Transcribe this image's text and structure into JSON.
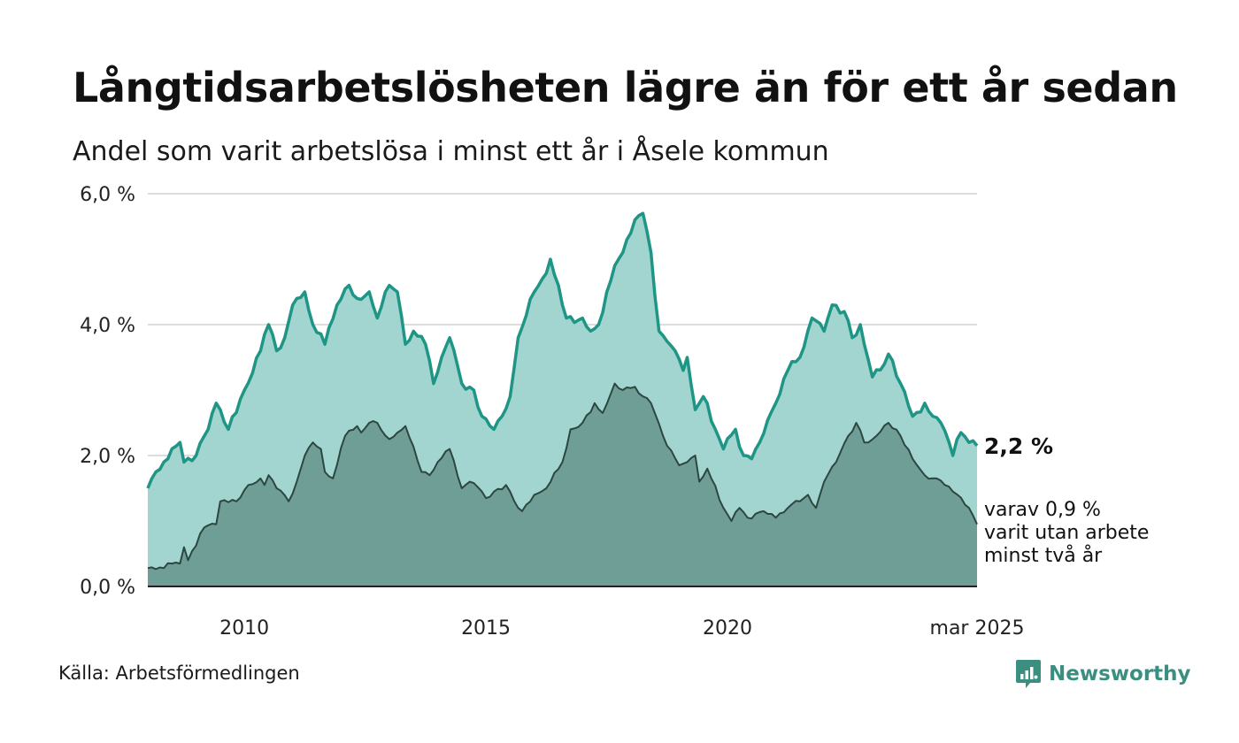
{
  "title": "Långtidsarbetslösheten lägre än för ett år sedan",
  "subtitle": "Andel som varit arbetslösa i minst ett år i Åsele kommun",
  "source": "Källa: Arbetsförmedlingen",
  "brand": "Newsworthy",
  "colors": {
    "series1_line": "#1f9586",
    "series1_fill": "#a3d5d0",
    "series2_line": "#2c4640",
    "series2_fill": "#6f9e96",
    "grid": "#dddddd",
    "baseline": "#222222",
    "brand": "#3a8f80"
  },
  "chart_data": {
    "type": "area",
    "x_start": "2008-01",
    "x_end": "2025-03",
    "frequency": "monthly",
    "ylim": [
      0,
      6
    ],
    "yticks": [
      0,
      2,
      4,
      6
    ],
    "ytick_labels": [
      "0,0 %",
      "2,0 %",
      "4,0 %",
      "6,0 %"
    ],
    "xticks": [
      {
        "x": "2010-01",
        "label": "2010"
      },
      {
        "x": "2015-01",
        "label": "2015"
      },
      {
        "x": "2020-01",
        "label": "2020"
      },
      {
        "x": "2025-03",
        "label": "mar 2025"
      }
    ],
    "grid": true,
    "series": [
      {
        "end_label": "2,2 %",
        "anchors": [
          [
            "2008-01",
            1.5
          ],
          [
            "2008-03",
            1.75
          ],
          [
            "2008-06",
            1.95
          ],
          [
            "2008-09",
            2.2
          ],
          [
            "2008-10",
            1.9
          ],
          [
            "2009-01",
            2.0
          ],
          [
            "2009-04",
            2.4
          ],
          [
            "2009-06",
            2.8
          ],
          [
            "2009-09",
            2.4
          ],
          [
            "2010-01",
            3.0
          ],
          [
            "2010-05",
            3.6
          ],
          [
            "2010-07",
            4.0
          ],
          [
            "2010-09",
            3.6
          ],
          [
            "2010-11",
            3.8
          ],
          [
            "2011-01",
            4.3
          ],
          [
            "2011-04",
            4.5
          ],
          [
            "2011-06",
            4.0
          ],
          [
            "2011-09",
            3.7
          ],
          [
            "2011-12",
            4.3
          ],
          [
            "2012-03",
            4.6
          ],
          [
            "2012-05",
            4.4
          ],
          [
            "2012-08",
            4.5
          ],
          [
            "2012-10",
            4.1
          ],
          [
            "2013-01",
            4.6
          ],
          [
            "2013-03",
            4.5
          ],
          [
            "2013-05",
            3.7
          ],
          [
            "2013-07",
            3.9
          ],
          [
            "2013-10",
            3.7
          ],
          [
            "2013-12",
            3.1
          ],
          [
            "2014-02",
            3.5
          ],
          [
            "2014-04",
            3.8
          ],
          [
            "2014-07",
            3.1
          ],
          [
            "2014-10",
            3.0
          ],
          [
            "2014-12",
            2.6
          ],
          [
            "2015-03",
            2.4
          ],
          [
            "2015-05",
            2.6
          ],
          [
            "2015-07",
            2.9
          ],
          [
            "2015-09",
            3.8
          ],
          [
            "2016-01",
            4.5
          ],
          [
            "2016-03",
            4.7
          ],
          [
            "2016-05",
            5.0
          ],
          [
            "2016-07",
            4.6
          ],
          [
            "2016-09",
            4.1
          ],
          [
            "2017-01",
            4.1
          ],
          [
            "2017-03",
            3.9
          ],
          [
            "2017-05",
            4.0
          ],
          [
            "2017-09",
            4.9
          ],
          [
            "2017-11",
            5.1
          ],
          [
            "2018-01",
            5.4
          ],
          [
            "2018-02",
            5.6
          ],
          [
            "2018-04",
            5.7
          ],
          [
            "2018-06",
            5.1
          ],
          [
            "2018-08",
            3.9
          ],
          [
            "2018-12",
            3.6
          ],
          [
            "2019-02",
            3.3
          ],
          [
            "2019-03",
            3.5
          ],
          [
            "2019-05",
            2.7
          ],
          [
            "2019-07",
            2.9
          ],
          [
            "2019-10",
            2.4
          ],
          [
            "2019-12",
            2.1
          ],
          [
            "2020-03",
            2.4
          ],
          [
            "2020-05",
            2.0
          ],
          [
            "2020-07",
            1.95
          ],
          [
            "2020-09",
            2.2
          ],
          [
            "2021-01",
            2.8
          ],
          [
            "2021-04",
            3.3
          ],
          [
            "2021-07",
            3.5
          ],
          [
            "2021-10",
            4.1
          ],
          [
            "2022-01",
            3.9
          ],
          [
            "2022-03",
            4.3
          ],
          [
            "2022-06",
            4.2
          ],
          [
            "2022-08",
            3.8
          ],
          [
            "2022-10",
            4.0
          ],
          [
            "2023-01",
            3.2
          ],
          [
            "2023-04",
            3.4
          ],
          [
            "2023-05",
            3.55
          ],
          [
            "2023-08",
            3.1
          ],
          [
            "2023-11",
            2.6
          ],
          [
            "2024-02",
            2.8
          ],
          [
            "2024-04",
            2.6
          ],
          [
            "2024-06",
            2.5
          ],
          [
            "2024-09",
            2.0
          ],
          [
            "2024-11",
            2.35
          ],
          [
            "2025-01",
            2.2
          ],
          [
            "2025-03",
            2.15
          ]
        ]
      },
      {
        "end_label": "varav 0,9 %\nvarit utan arbete\nminst två år",
        "anchors": [
          [
            "2008-01",
            0.28
          ],
          [
            "2008-05",
            0.28
          ],
          [
            "2008-07",
            0.35
          ],
          [
            "2008-09",
            0.35
          ],
          [
            "2008-10",
            0.6
          ],
          [
            "2008-11",
            0.4
          ],
          [
            "2009-03",
            0.9
          ],
          [
            "2009-06",
            0.95
          ],
          [
            "2009-07",
            1.3
          ],
          [
            "2009-11",
            1.3
          ],
          [
            "2010-02",
            1.55
          ],
          [
            "2010-05",
            1.65
          ],
          [
            "2010-06",
            1.55
          ],
          [
            "2010-07",
            1.7
          ],
          [
            "2010-09",
            1.5
          ],
          [
            "2010-12",
            1.3
          ],
          [
            "2011-02",
            1.6
          ],
          [
            "2011-04",
            2.0
          ],
          [
            "2011-06",
            2.2
          ],
          [
            "2011-08",
            2.1
          ],
          [
            "2011-09",
            1.75
          ],
          [
            "2011-11",
            1.65
          ],
          [
            "2012-02",
            2.3
          ],
          [
            "2012-05",
            2.45
          ],
          [
            "2012-06",
            2.35
          ],
          [
            "2012-08",
            2.5
          ],
          [
            "2012-10",
            2.5
          ],
          [
            "2013-01",
            2.25
          ],
          [
            "2013-03",
            2.35
          ],
          [
            "2013-05",
            2.45
          ],
          [
            "2013-09",
            1.75
          ],
          [
            "2013-11",
            1.7
          ],
          [
            "2014-01",
            1.9
          ],
          [
            "2014-04",
            2.1
          ],
          [
            "2014-07",
            1.5
          ],
          [
            "2014-09",
            1.6
          ],
          [
            "2014-12",
            1.45
          ],
          [
            "2015-01",
            1.35
          ],
          [
            "2015-03",
            1.45
          ],
          [
            "2015-06",
            1.55
          ],
          [
            "2015-09",
            1.2
          ],
          [
            "2015-10",
            1.15
          ],
          [
            "2016-01",
            1.4
          ],
          [
            "2016-04",
            1.5
          ],
          [
            "2016-08",
            1.9
          ],
          [
            "2016-10",
            2.4
          ],
          [
            "2017-01",
            2.5
          ],
          [
            "2017-04",
            2.8
          ],
          [
            "2017-06",
            2.65
          ],
          [
            "2017-09",
            3.1
          ],
          [
            "2017-11",
            3.0
          ],
          [
            "2018-02",
            3.05
          ],
          [
            "2018-03",
            2.95
          ],
          [
            "2018-06",
            2.8
          ],
          [
            "2018-09",
            2.3
          ],
          [
            "2019-01",
            1.85
          ],
          [
            "2019-03",
            1.9
          ],
          [
            "2019-05",
            2.0
          ],
          [
            "2019-06",
            1.6
          ],
          [
            "2019-08",
            1.8
          ],
          [
            "2019-12",
            1.2
          ],
          [
            "2020-02",
            1.0
          ],
          [
            "2020-04",
            1.2
          ],
          [
            "2020-06",
            1.05
          ],
          [
            "2020-10",
            1.15
          ],
          [
            "2021-01",
            1.05
          ],
          [
            "2021-04",
            1.2
          ],
          [
            "2021-07",
            1.3
          ],
          [
            "2021-09",
            1.4
          ],
          [
            "2021-11",
            1.2
          ],
          [
            "2022-01",
            1.6
          ],
          [
            "2022-04",
            1.9
          ],
          [
            "2022-07",
            2.3
          ],
          [
            "2022-09",
            2.5
          ],
          [
            "2022-11",
            2.2
          ],
          [
            "2023-02",
            2.3
          ],
          [
            "2023-05",
            2.5
          ],
          [
            "2023-08",
            2.3
          ],
          [
            "2023-11",
            1.95
          ],
          [
            "2024-02",
            1.7
          ],
          [
            "2024-05",
            1.65
          ],
          [
            "2024-07",
            1.55
          ],
          [
            "2024-09",
            1.45
          ],
          [
            "2024-12",
            1.25
          ],
          [
            "2025-01",
            1.2
          ],
          [
            "2025-03",
            0.95
          ]
        ]
      }
    ]
  }
}
